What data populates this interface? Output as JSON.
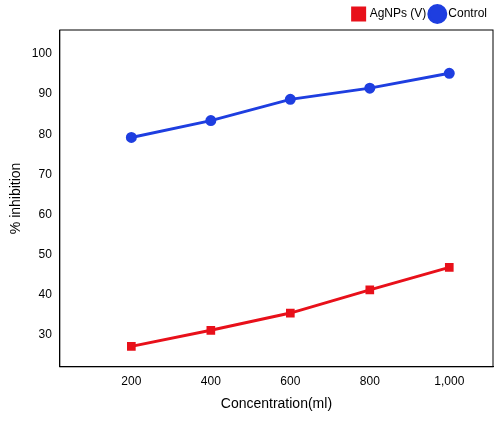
{
  "chart_data": {
    "type": "line",
    "x_label": "Concentration(ml)",
    "y_label": "% inhibition",
    "x": [
      200,
      400,
      600,
      800,
      1000
    ],
    "series": [
      {
        "name": "AgNPs (V)",
        "color": "#e8101a",
        "marker": "square",
        "line_style": "solid",
        "values": [
          27.1,
          31.1,
          35.4,
          41.2,
          46.8
        ]
      },
      {
        "name": "Control",
        "color": "#1e3ee0",
        "marker": "circle",
        "line_style": "solid",
        "values": [
          79.2,
          83.4,
          88.7,
          91.5,
          95.2
        ]
      }
    ],
    "xlim": [
      20,
      1110
    ],
    "xticks": [
      200,
      400,
      600,
      800,
      1000
    ],
    "ylim": [
      22,
      106
    ],
    "yticks": [
      30,
      40,
      50,
      60,
      70,
      80,
      90,
      100
    ],
    "grid": false,
    "legend": "top right"
  }
}
